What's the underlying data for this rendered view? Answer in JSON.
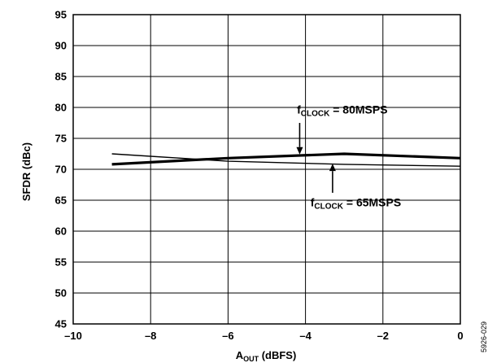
{
  "chart_data": {
    "type": "line",
    "title": "",
    "xlabel": {
      "main": "A",
      "sub": "OUT",
      "rest": " (dBFS)"
    },
    "ylabel": "SFDR (dBc)",
    "xlim": [
      -10,
      0
    ],
    "ylim": [
      45,
      95
    ],
    "xticks": [
      {
        "value": -10,
        "label": "–10"
      },
      {
        "value": -8,
        "label": "–8"
      },
      {
        "value": -6,
        "label": "–6"
      },
      {
        "value": -4,
        "label": "–4"
      },
      {
        "value": -2,
        "label": "–2"
      },
      {
        "value": 0,
        "label": "0"
      }
    ],
    "yticks": [
      45,
      50,
      55,
      60,
      65,
      70,
      75,
      80,
      85,
      90,
      95
    ],
    "grid": true,
    "series": [
      {
        "key": "80msps",
        "x": [
          -9,
          -6,
          -3,
          0
        ],
        "y": [
          70.8,
          71.8,
          72.5,
          71.8
        ],
        "color": "#000000",
        "weight": "thick"
      },
      {
        "key": "65msps",
        "x": [
          -9,
          -6,
          -3,
          0
        ],
        "y": [
          72.5,
          71.3,
          70.8,
          70.5
        ],
        "color": "#000000",
        "weight": "thin"
      }
    ],
    "annotations": [
      {
        "series": "80msps",
        "main": "f",
        "sub": "CLOCK",
        "rest": " = 80MSPS",
        "text_at": [
          -3.05,
          79
        ],
        "arrow_from": [
          -4.15,
          77.5
        ],
        "arrow_to": [
          -4.15,
          72.4
        ]
      },
      {
        "series": "65msps",
        "main": "f",
        "sub": "CLOCK",
        "rest": " = 65MSPS",
        "text_at": [
          -2.7,
          64
        ],
        "arrow_from": [
          -3.3,
          66.2
        ],
        "arrow_to": [
          -3.3,
          70.9
        ]
      }
    ]
  },
  "figure_id": "5926-029"
}
